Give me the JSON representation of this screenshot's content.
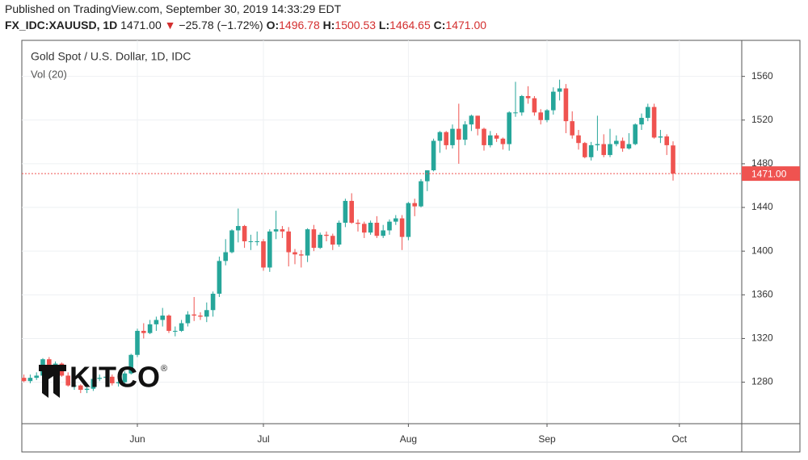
{
  "header": {
    "published": "Published on TradingView.com, September 30, 2019 14:33:29 EDT",
    "symbol": "FX_IDC:XAUUSD, 1D",
    "last": "1471.00",
    "arrow": "▼",
    "change": "−25.78 (−1.72%)",
    "o_label": "O:",
    "o": "1496.78",
    "h_label": "H:",
    "h": "1500.53",
    "l_label": "L:",
    "l": "1464.65",
    "c_label": "C:",
    "c": "1471.00"
  },
  "chart_data": {
    "type": "candlestick",
    "title": "Gold Spot / U.S. Dollar, 1D, IDC",
    "subtitle": "Vol (20)",
    "watermark": "KITCO",
    "watermark_mark": "®",
    "up_color": "#26a69a",
    "down_color": "#ef5350",
    "grid": true,
    "ylim": [
      1242,
      1593
    ],
    "yticks": [
      1280,
      1320,
      1360,
      1400,
      1440,
      1480,
      1520,
      1560
    ],
    "price_line": {
      "value": 1471,
      "label": "1471.00"
    },
    "categories": [
      null,
      null,
      null,
      null,
      null,
      null,
      null,
      null,
      null,
      null,
      null,
      null,
      null,
      null,
      null,
      null,
      null,
      null,
      "Jun",
      null,
      null,
      null,
      null,
      null,
      null,
      null,
      null,
      null,
      null,
      null,
      null,
      null,
      null,
      null,
      null,
      null,
      null,
      null,
      "Jul",
      null,
      null,
      null,
      null,
      null,
      null,
      null,
      null,
      null,
      null,
      null,
      null,
      null,
      null,
      null,
      null,
      null,
      null,
      null,
      null,
      null,
      null,
      "Aug",
      null,
      null,
      null,
      null,
      null,
      null,
      null,
      null,
      null,
      null,
      null,
      null,
      null,
      null,
      null,
      null,
      null,
      null,
      null,
      null,
      null,
      "Sep",
      null,
      null,
      null,
      null,
      null,
      null,
      null,
      null,
      null,
      null,
      null,
      null,
      null,
      null,
      null,
      null,
      null,
      null,
      null,
      null,
      "Oct"
    ],
    "open": [
      1284,
      1281,
      1284,
      1286,
      1301,
      1296,
      1297,
      1286,
      1277,
      1277,
      1273,
      1274,
      1283,
      1284,
      1285,
      1279,
      1280,
      1288,
      1305,
      1327,
      1325,
      1333,
      1337,
      1341,
      1327,
      1327,
      1334,
      1342,
      1341,
      1340,
      1346,
      1361,
      1391,
      1399,
      1419,
      1423,
      1409,
      1409,
      1409,
      1385,
      1418,
      1420,
      1418,
      1399,
      1397,
      1396,
      1420,
      1403,
      1415,
      1414,
      1406,
      1426,
      1446,
      1426,
      1425,
      1417,
      1426,
      1414,
      1419,
      1427,
      1430,
      1413,
      1444,
      1441,
      1464,
      1474,
      1501,
      1509,
      1497,
      1512,
      1502,
      1516,
      1524,
      1512,
      1497,
      1506,
      1503,
      1498,
      1527,
      1527,
      1542,
      1540,
      1527,
      1520,
      1529,
      1546,
      1549,
      1519,
      1506,
      1499,
      1486,
      1497,
      1498,
      1488,
      1498,
      1501,
      1494,
      1498,
      1516,
      1522,
      1532,
      1504,
      1505,
      1496.78,
      null
    ],
    "high": [
      1287,
      1287,
      1289,
      1302,
      1303,
      1299,
      1298,
      1289,
      1280,
      1278,
      1276,
      1286,
      1287,
      1286,
      1287,
      1284,
      1290,
      1306,
      1329,
      1334,
      1337,
      1340,
      1348,
      1342,
      1331,
      1337,
      1345,
      1358,
      1344,
      1353,
      1363,
      1395,
      1411,
      1420,
      1439,
      1424,
      1415,
      1418,
      1411,
      1420,
      1437,
      1423,
      1422,
      1402,
      1401,
      1421,
      1424,
      1417,
      1418,
      1416,
      1428,
      1448,
      1453,
      1429,
      1427,
      1428,
      1432,
      1424,
      1429,
      1433,
      1433,
      1445,
      1448,
      1466,
      1474,
      1503,
      1510,
      1510,
      1516,
      1535,
      1519,
      1525,
      1524,
      1513,
      1510,
      1508,
      1504,
      1528,
      1555,
      1543,
      1551,
      1542,
      1530,
      1530,
      1550,
      1557,
      1553,
      1528,
      1511,
      1500,
      1500,
      1524,
      1507,
      1512,
      1506,
      1504,
      1508,
      1517,
      1526,
      1535,
      1535,
      1511,
      1507,
      1500.53,
      null
    ],
    "low": [
      1280,
      1279,
      1282,
      1285,
      1294,
      1292,
      1285,
      1276,
      1273,
      1270,
      1270,
      1272,
      1281,
      1282,
      1277,
      1276,
      1278,
      1287,
      1303,
      1320,
      1324,
      1327,
      1331,
      1325,
      1322,
      1326,
      1331,
      1336,
      1337,
      1335,
      1340,
      1358,
      1387,
      1398,
      1408,
      1403,
      1401,
      1405,
      1382,
      1381,
      1411,
      1412,
      1386,
      1388,
      1385,
      1390,
      1400,
      1402,
      1409,
      1401,
      1404,
      1422,
      1425,
      1418,
      1412,
      1415,
      1412,
      1412,
      1415,
      1424,
      1401,
      1410,
      1432,
      1440,
      1455,
      1473,
      1490,
      1493,
      1494,
      1480,
      1497,
      1510,
      1506,
      1492,
      1495,
      1500,
      1493,
      1492,
      1523,
      1524,
      1535,
      1524,
      1516,
      1518,
      1525,
      1538,
      1508,
      1503,
      1493,
      1485,
      1483,
      1492,
      1486,
      1486,
      1496,
      1491,
      1493,
      1497,
      1511,
      1519,
      1503,
      1499,
      1488,
      1464.65,
      null
    ],
    "close": [
      1281,
      1284,
      1286,
      1301,
      1296,
      1297,
      1286,
      1277,
      1277,
      1273,
      1274,
      1283,
      1284,
      1285,
      1279,
      1280,
      1288,
      1305,
      1327,
      1325,
      1333,
      1337,
      1341,
      1327,
      1327,
      1334,
      1342,
      1341,
      1340,
      1346,
      1361,
      1391,
      1399,
      1419,
      1423,
      1409,
      1409,
      1409,
      1385,
      1418,
      1420,
      1418,
      1399,
      1397,
      1396,
      1420,
      1403,
      1415,
      1414,
      1406,
      1426,
      1446,
      1426,
      1425,
      1417,
      1426,
      1414,
      1419,
      1427,
      1430,
      1413,
      1444,
      1441,
      1464,
      1474,
      1501,
      1509,
      1497,
      1512,
      1502,
      1516,
      1524,
      1512,
      1497,
      1506,
      1503,
      1498,
      1527,
      1527,
      1542,
      1540,
      1527,
      1520,
      1529,
      1546,
      1549,
      1519,
      1506,
      1499,
      1486,
      1497,
      1498,
      1488,
      1498,
      1501,
      1494,
      1498,
      1516,
      1522,
      1532,
      1504,
      1505,
      1497,
      1471.0,
      null
    ]
  }
}
